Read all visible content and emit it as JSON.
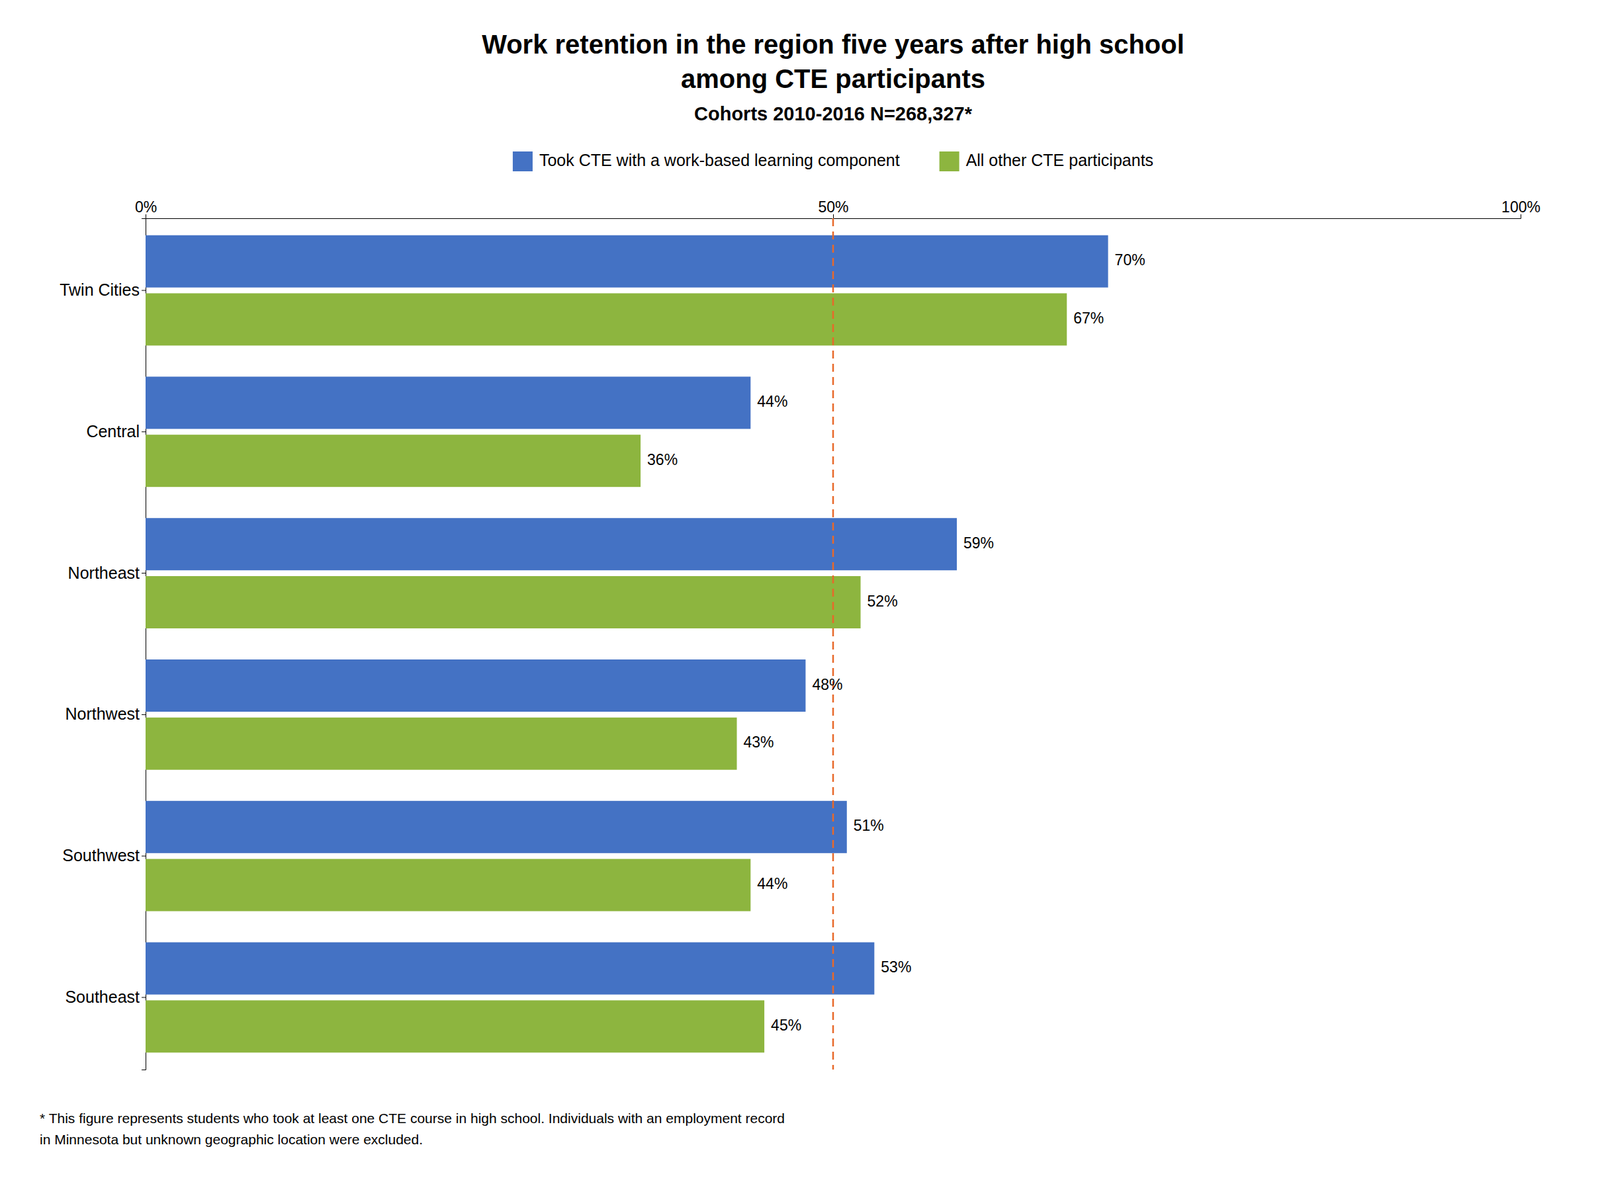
{
  "chart_data": {
    "type": "bar",
    "orientation": "horizontal",
    "title": [
      "Work retention in the region five years after high school",
      "among CTE participants"
    ],
    "subtitle": "Cohorts 2010-2016 N=268,327*",
    "categories": [
      "Twin Cities",
      "Central",
      "Northeast",
      "Northwest",
      "Southwest",
      "Southeast"
    ],
    "series": [
      {
        "name": "Took CTE with a work-based learning component",
        "color": "#4472C4",
        "values": [
          70,
          44,
          59,
          48,
          51,
          53
        ],
        "value_labels": [
          "70%",
          "44%",
          "59%",
          "48%",
          "51%",
          "53%"
        ]
      },
      {
        "name": "All other CTE participants",
        "color": "#8DB53F",
        "values": [
          67,
          36,
          52,
          43,
          44,
          45
        ],
        "value_labels": [
          "67%",
          "36%",
          "52%",
          "43%",
          "44%",
          "45%"
        ]
      }
    ],
    "xlim": [
      0,
      100
    ],
    "xticks": [
      {
        "value": 0,
        "label": "0%"
      },
      {
        "value": 50,
        "label": "50%"
      },
      {
        "value": 100,
        "label": "100%"
      }
    ],
    "reference_lines": [
      {
        "value": 50,
        "color": "#E8692A",
        "line_style": "dashed"
      }
    ],
    "annotations": [
      "* This figure represents students who took at least one CTE course in high school. Individuals with an employment record",
      "in Minnesota but unknown geographic location were excluded."
    ],
    "data_labels": true,
    "legend": "top",
    "grid": false
  }
}
